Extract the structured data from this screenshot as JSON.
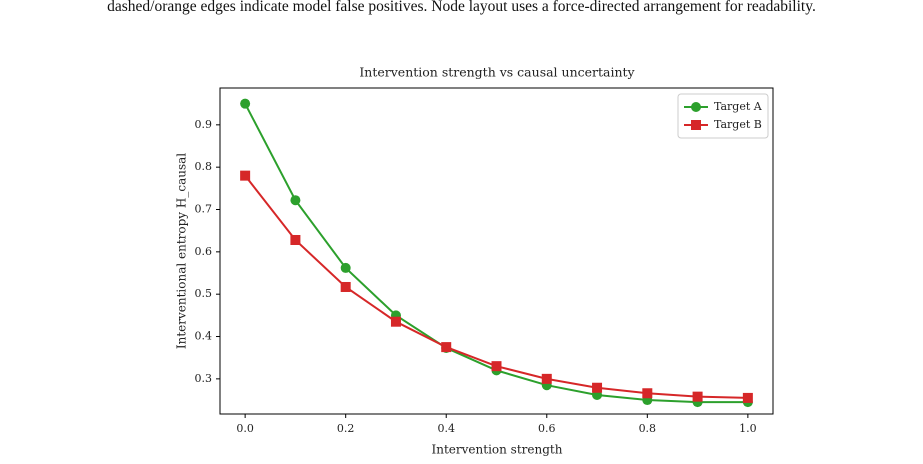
{
  "caption_text": "dashed/orange edges indicate model false positives. Node layout uses a force-directed arrangement for readability.",
  "chart_data": {
    "type": "line",
    "title": "Intervention strength vs causal uncertainty",
    "x_label": "Intervention strength",
    "y_label": "Interventional entropy H_causal",
    "x": [
      0.0,
      0.1,
      0.2,
      0.3,
      0.4,
      0.5,
      0.6,
      0.7,
      0.8,
      0.9,
      1.0
    ],
    "series": [
      {
        "name": "Target A",
        "color": "#2ca02c",
        "marker": "circle",
        "values": [
          0.95,
          0.722,
          0.562,
          0.45,
          0.373,
          0.32,
          0.285,
          0.262,
          0.25,
          0.245,
          0.245
        ]
      },
      {
        "name": "Target B",
        "color": "#d62728",
        "marker": "square",
        "values": [
          0.78,
          0.628,
          0.517,
          0.435,
          0.375,
          0.33,
          0.3,
          0.279,
          0.266,
          0.258,
          0.255
        ]
      }
    ],
    "xlim": [
      -0.05,
      1.05
    ],
    "ylim": [
      0.217,
      0.987
    ],
    "xticks": [
      {
        "value": 0,
        "label": "0.0"
      },
      0.2,
      0.4,
      0.6,
      0.8,
      {
        "value": 1,
        "label": "1.0"
      }
    ],
    "yticks": [
      0.3,
      0.4,
      0.5,
      0.6,
      0.7,
      0.8,
      0.9
    ],
    "grid": false,
    "legend": "upper right"
  }
}
